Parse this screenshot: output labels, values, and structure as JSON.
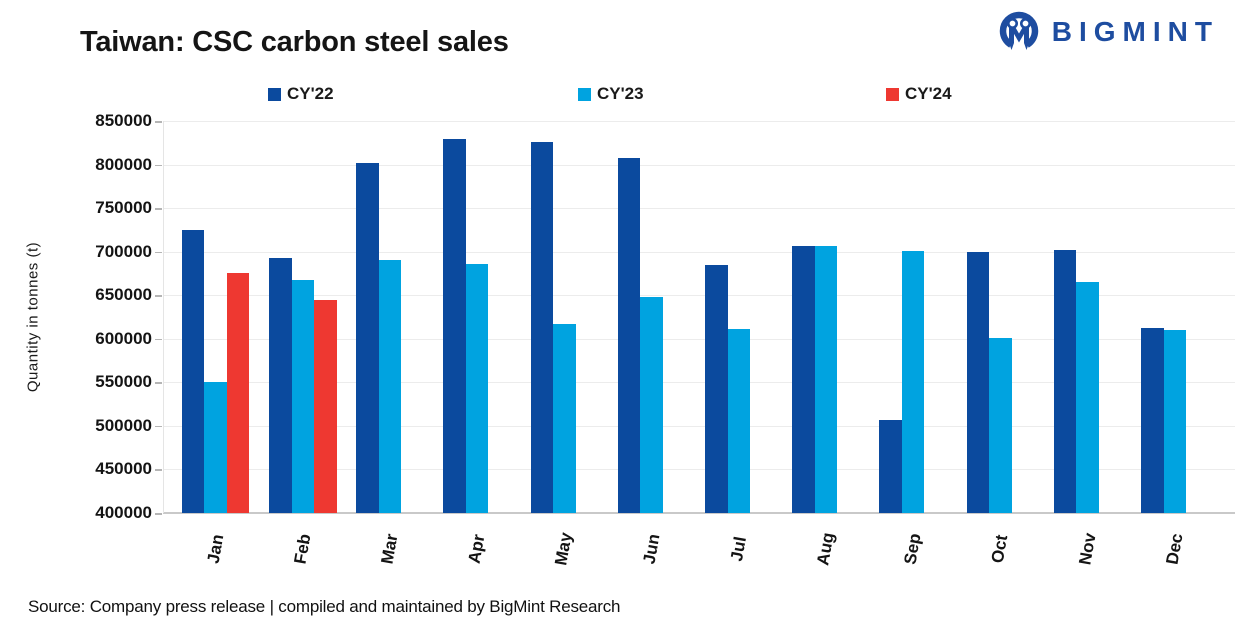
{
  "header": {
    "title": "Taiwan: CSC carbon steel sales",
    "logo_text": "BIGMINT",
    "logo_color": "#1e4da0"
  },
  "footer": {
    "source": "Source: Company press release | compiled and maintained by BigMint Research"
  },
  "chart_data": {
    "type": "bar",
    "title": "Taiwan: CSC carbon steel sales",
    "ylabel": "Quantity in tonnes (t)",
    "xlabel": "",
    "ylim": [
      400000,
      850000
    ],
    "ytick_step": 50000,
    "grid": true,
    "legend_position": "top",
    "categories": [
      "Jan",
      "Feb",
      "Mar",
      "Apr",
      "May",
      "Jun",
      "Jul",
      "Aug",
      "Sep",
      "Oct",
      "Nov",
      "Dec"
    ],
    "series": [
      {
        "name": "CY'22",
        "color": "#0b4a9e",
        "values": [
          725000,
          693000,
          802000,
          829000,
          826000,
          807000,
          685000,
          707000,
          507000,
          700000,
          702000,
          612000
        ]
      },
      {
        "name": "CY'23",
        "color": "#00a3e0",
        "values": [
          550000,
          667000,
          691000,
          686000,
          617000,
          648000,
          611000,
          706000,
          701000,
          601000,
          665000,
          610000
        ]
      },
      {
        "name": "CY'24",
        "color": "#ee3831",
        "values": [
          676000,
          644000,
          null,
          null,
          null,
          null,
          null,
          null,
          null,
          null,
          null,
          null
        ]
      }
    ]
  }
}
